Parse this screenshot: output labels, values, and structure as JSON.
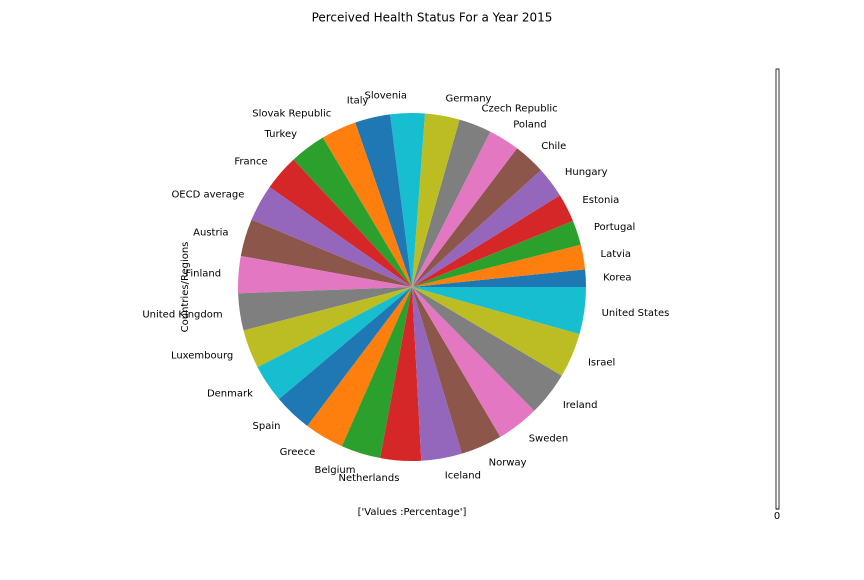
{
  "chart_data": {
    "type": "pie",
    "title": "Perceived Health Status For a Year 2015",
    "xlabel": "['Values :Percentage']",
    "ylabel": "Countries/Regions",
    "categories": [
      "Korea",
      "Latvia",
      "Portugal",
      "Estonia",
      "Hungary",
      "Chile",
      "Poland",
      "Czech Republic",
      "Germany",
      "Slovenia",
      "Italy",
      "Slovak Republic",
      "Turkey",
      "France",
      "OECD average",
      "Austria",
      "Finland",
      "United Kingdom",
      "Luxembourg",
      "Denmark",
      "Spain",
      "Greece",
      "Belgium",
      "Netherlands",
      "Iceland",
      "Norway",
      "Sweden",
      "Ireland",
      "Israel",
      "United States"
    ],
    "values": [
      32.5,
      46.3,
      46.4,
      53.1,
      58.2,
      59.8,
      58.3,
      60.9,
      64.9,
      64.6,
      66.2,
      66.2,
      67.7,
      67.4,
      68.7,
      70.1,
      69.3,
      69.4,
      72.7,
      71.1,
      72.3,
      74.0,
      74.0,
      76.3,
      76.4,
      77.4,
      79.3,
      82.5,
      83.7,
      88.0
    ],
    "colors": [
      "#1f77b4",
      "#ff7f0e",
      "#2ca02c",
      "#d62728",
      "#9467bd",
      "#8c564b",
      "#e377c2",
      "#7f7f7f",
      "#bcbd22",
      "#17becf"
    ],
    "start_angle": 0,
    "colorbar_ticks": [
      0
    ]
  }
}
